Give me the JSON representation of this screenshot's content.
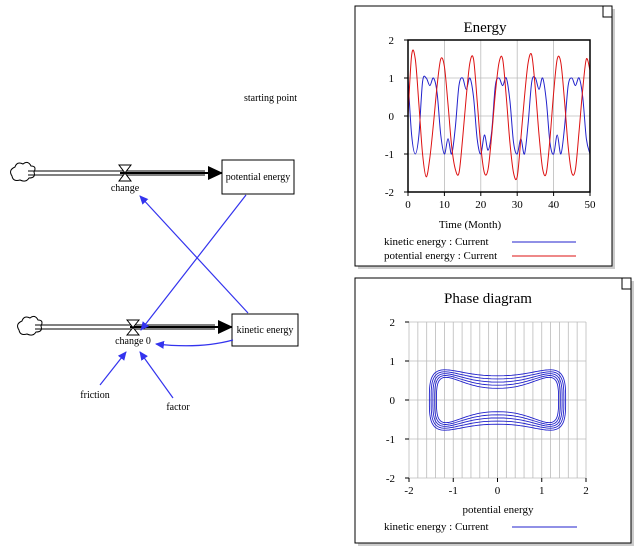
{
  "model": {
    "starting_point_label": "starting point",
    "stocks": [
      {
        "id": "potential",
        "label": "potential energy"
      },
      {
        "id": "kinetic",
        "label": "kinetic energy"
      }
    ],
    "flows": [
      {
        "id": "change",
        "label": "change"
      },
      {
        "id": "change0",
        "label": "change 0"
      }
    ],
    "auxiliaries": [
      {
        "id": "friction",
        "label": "friction"
      },
      {
        "id": "factor",
        "label": "factor"
      }
    ],
    "colors": {
      "link": "#3333ee",
      "pipe": "#000000"
    }
  },
  "chart_data": [
    {
      "type": "line",
      "title": "Energy",
      "xlabel": "Time (Month)",
      "ylabel": "",
      "xlim": [
        0,
        50
      ],
      "ylim": [
        -2,
        2
      ],
      "xticks": [
        "0",
        "10",
        "20",
        "30",
        "40",
        "50"
      ],
      "yticks": [
        "2",
        "1",
        "0",
        "-1",
        "-2"
      ],
      "grid": true,
      "legend_placement": "bottom",
      "series": [
        {
          "name": "kinetic energy : Current",
          "color": "#2222cc",
          "x": [
            0,
            1,
            2,
            3,
            4,
            5,
            6,
            7,
            8,
            9,
            10,
            11,
            12,
            13,
            14,
            15,
            16,
            17,
            18,
            19,
            20,
            21,
            22,
            23,
            24,
            25,
            26,
            27,
            28,
            29,
            30,
            31,
            32,
            33,
            34,
            35,
            36,
            37,
            38,
            39,
            40,
            41,
            42,
            43,
            44,
            45,
            46,
            47,
            48,
            49,
            50
          ],
          "y": [
            1.0,
            -0.5,
            -1.0,
            -0.5,
            0.9,
            1.0,
            0.8,
            1.0,
            0.6,
            -0.5,
            -1.0,
            -0.6,
            -1.0,
            -0.3,
            0.8,
            1.0,
            0.7,
            1.0,
            0.5,
            -0.6,
            -1.0,
            -0.5,
            -0.9,
            -0.4,
            0.8,
            1.0,
            0.8,
            1.0,
            0.4,
            -0.7,
            -1.0,
            -0.6,
            -1.0,
            -0.2,
            0.9,
            1.0,
            0.7,
            1.0,
            0.4,
            -0.7,
            -1.0,
            -0.5,
            -1.0,
            -0.3,
            0.8,
            1.0,
            0.8,
            1.0,
            0.5,
            -0.6,
            -1.0
          ]
        },
        {
          "name": "potential energy : Current",
          "color": "#dd1111",
          "x": [
            0,
            1,
            2,
            3,
            4,
            5,
            6,
            7,
            8,
            9,
            10,
            11,
            12,
            13,
            14,
            15,
            16,
            17,
            18,
            19,
            20,
            21,
            22,
            23,
            24,
            25,
            26,
            27,
            28,
            29,
            30,
            31,
            32,
            33,
            34,
            35,
            36,
            37,
            38,
            39,
            40,
            41,
            42,
            43,
            44,
            45,
            46,
            47,
            48,
            49,
            50
          ],
          "y": [
            0.0,
            1.6,
            1.5,
            0.3,
            -1.0,
            -1.6,
            -1.1,
            -0.2,
            0.8,
            1.5,
            1.3,
            0.3,
            -0.8,
            -1.4,
            -1.5,
            -0.6,
            0.5,
            1.4,
            1.5,
            0.4,
            -0.8,
            -1.5,
            -1.4,
            -0.5,
            0.6,
            1.4,
            1.5,
            0.5,
            -0.7,
            -1.5,
            -1.6,
            -0.6,
            0.5,
            1.4,
            1.6,
            0.7,
            -0.5,
            -1.4,
            -1.5,
            -0.6,
            0.6,
            1.5,
            1.4,
            0.4,
            -0.8,
            -1.5,
            -1.4,
            -0.4,
            0.7,
            1.5,
            1.2
          ]
        }
      ]
    },
    {
      "type": "line",
      "title": "Phase diagram",
      "xlabel": "potential energy",
      "ylabel": "",
      "xlim": [
        -2,
        2
      ],
      "ylim": [
        -2,
        2
      ],
      "xticks": [
        "-2",
        "-1",
        "0",
        "1",
        "2"
      ],
      "yticks": [
        "2",
        "1",
        "0",
        "-1",
        "-2"
      ],
      "grid": true,
      "legend_placement": "bottom",
      "series": [
        {
          "name": "kinetic energy : Current",
          "color": "#2222cc",
          "curve": "figure-eight-orbits",
          "orbits": [
            {
              "x_extent": 1.38,
              "y_outer": 1.0,
              "y_waist": 0.3
            },
            {
              "x_extent": 1.42,
              "y_outer": 1.05,
              "y_waist": 0.38
            },
            {
              "x_extent": 1.46,
              "y_outer": 1.1,
              "y_waist": 0.46
            },
            {
              "x_extent": 1.5,
              "y_outer": 1.15,
              "y_waist": 0.54
            },
            {
              "x_extent": 1.54,
              "y_outer": 1.2,
              "y_waist": 0.62
            }
          ]
        }
      ]
    }
  ]
}
